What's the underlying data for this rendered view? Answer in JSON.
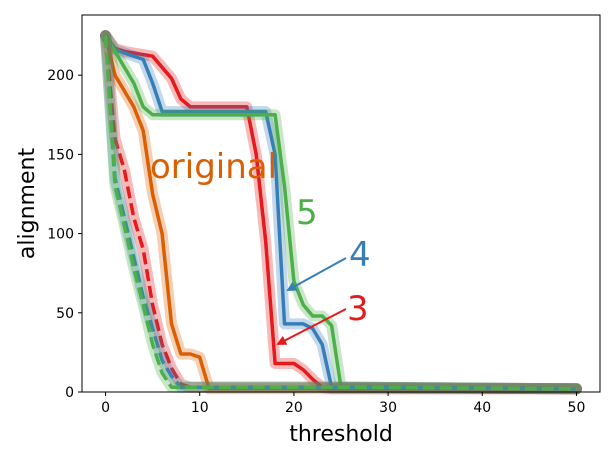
{
  "chart_data": {
    "type": "line",
    "title": "",
    "xlabel": "threshold",
    "ylabel": "alignment",
    "xlim": [
      -2.5,
      52.5
    ],
    "ylim": [
      0,
      238
    ],
    "xticks": [
      0,
      10,
      20,
      30,
      40,
      50
    ],
    "yticks": [
      0,
      50,
      100,
      150,
      200
    ],
    "grid": false,
    "legend": "none",
    "colors": {
      "orange": "#d95f02",
      "red": "#e41a1c",
      "blue": "#377eb8",
      "green": "#4daf4a"
    },
    "series": [
      {
        "color": "orange",
        "style": "solid",
        "x": [
          0,
          1,
          2,
          3,
          4,
          5,
          6,
          7,
          8,
          9,
          10,
          11,
          12,
          50
        ],
        "y": [
          225,
          200,
          190,
          180,
          165,
          125,
          100,
          43,
          24,
          24,
          22,
          2,
          2,
          2
        ]
      },
      {
        "color": "red",
        "style": "solid",
        "x": [
          0,
          1,
          2,
          3,
          4,
          5,
          6,
          7,
          8,
          9,
          10,
          15,
          16,
          17,
          18,
          19,
          20,
          21,
          22,
          23,
          24,
          50
        ],
        "y": [
          225,
          217,
          215,
          214,
          213,
          212,
          205,
          198,
          185,
          180,
          180,
          180,
          150,
          95,
          18,
          18,
          18,
          14,
          8,
          3,
          2,
          2
        ]
      },
      {
        "color": "blue",
        "style": "solid",
        "x": [
          0,
          1,
          2,
          3,
          4,
          5,
          6,
          17,
          18,
          19,
          20,
          21,
          22,
          23,
          24,
          25,
          26,
          50
        ],
        "y": [
          225,
          216,
          214,
          212,
          210,
          195,
          177,
          177,
          150,
          43,
          43,
          43,
          40,
          30,
          3,
          3,
          3,
          2
        ]
      },
      {
        "color": "green",
        "style": "solid",
        "x": [
          0,
          1,
          2,
          3,
          4,
          5,
          6,
          18,
          19,
          20,
          21,
          22,
          23,
          24,
          25,
          26,
          27,
          50
        ],
        "y": [
          225,
          215,
          205,
          195,
          180,
          175,
          175,
          175,
          130,
          70,
          55,
          48,
          48,
          42,
          3,
          3,
          3,
          2
        ]
      },
      {
        "color": "red",
        "style": "dashed",
        "x": [
          0,
          1,
          2,
          3,
          4,
          5,
          6,
          7,
          8,
          9,
          10,
          25,
          50
        ],
        "y": [
          225,
          160,
          140,
          110,
          90,
          55,
          30,
          15,
          5,
          3,
          3,
          3,
          2
        ]
      },
      {
        "color": "blue",
        "style": "dashed",
        "x": [
          0,
          1,
          2,
          3,
          4,
          5,
          6,
          7,
          8,
          25,
          50
        ],
        "y": [
          225,
          135,
          110,
          85,
          60,
          40,
          20,
          10,
          3,
          3,
          2
        ]
      },
      {
        "color": "green",
        "style": "dashed",
        "x": [
          0,
          1,
          2,
          3,
          4,
          5,
          6,
          7,
          25,
          50
        ],
        "y": [
          225,
          130,
          105,
          78,
          55,
          30,
          12,
          3,
          3,
          2
        ]
      }
    ],
    "annotations": [
      {
        "text": "original",
        "color": "orange"
      },
      {
        "text": "5",
        "color": "green"
      },
      {
        "text": "4",
        "color": "blue"
      },
      {
        "text": "3",
        "color": "red"
      }
    ]
  }
}
